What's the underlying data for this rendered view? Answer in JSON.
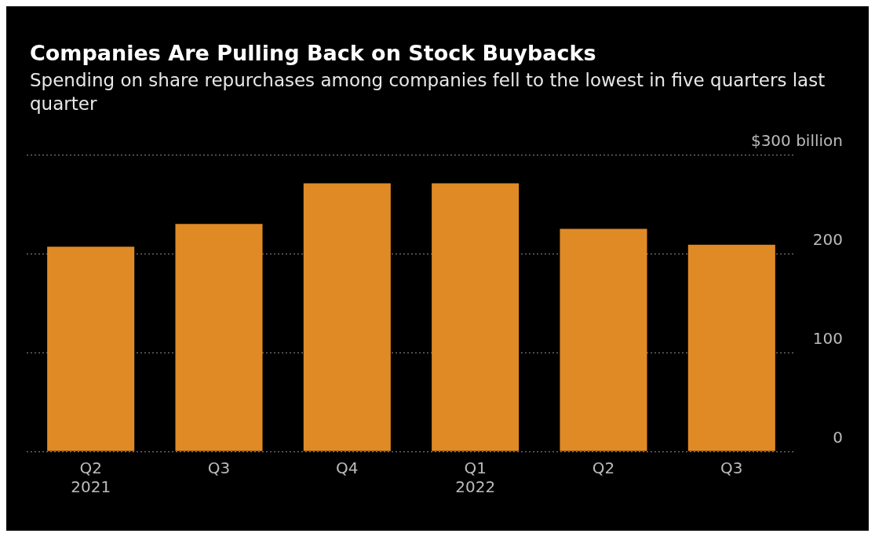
{
  "chart_data": {
    "type": "bar",
    "title": "Companies Are Pulling Back on Stock Buybacks",
    "subtitle": "Spending on share repurchases among companies fell to the lowest in five quarters last quarter",
    "categories": [
      "Q2 2021",
      "Q3",
      "Q4",
      "Q1 2022",
      "Q2",
      "Q3"
    ],
    "values": [
      207,
      230,
      271,
      271,
      225,
      209
    ],
    "color": "#e08a26",
    "ylim": [
      0,
      300
    ],
    "yticks": [
      0,
      100,
      200,
      {
        "value": 300,
        "label": "$300 billion"
      }
    ],
    "grid": "y",
    "legend": false
  }
}
